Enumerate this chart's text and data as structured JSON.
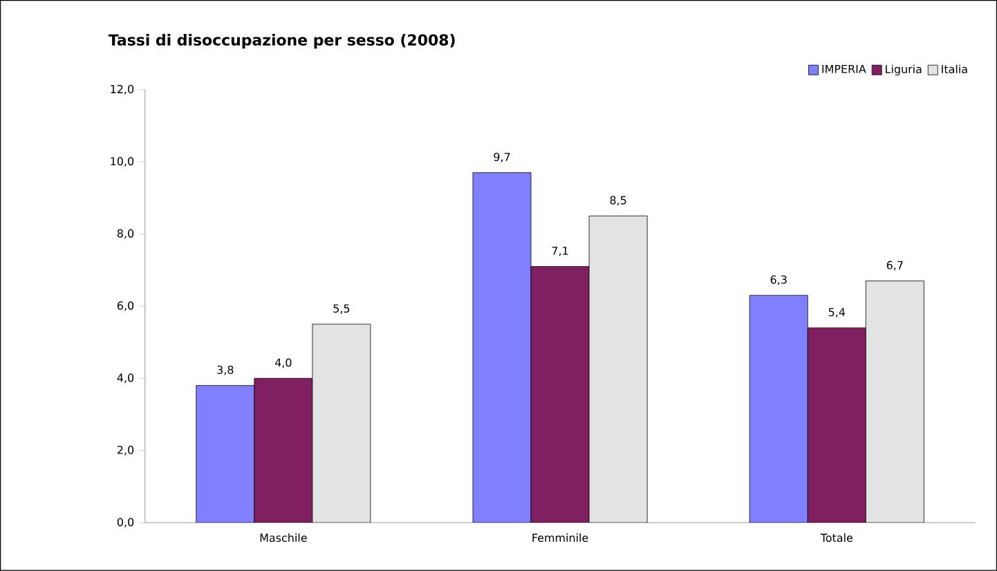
{
  "chart_data": {
    "type": "bar",
    "title": "Tassi di disoccupazione per sesso (2008)",
    "categories": [
      "Maschile",
      "Femminile",
      "Totale"
    ],
    "series": [
      {
        "name": "IMPERIA",
        "color": "#8080ff",
        "values": [
          3.8,
          9.7,
          6.3
        ],
        "value_labels": [
          "3,8",
          "9,7",
          "6,3"
        ]
      },
      {
        "name": "Liguria",
        "color": "#802060",
        "values": [
          4.0,
          7.1,
          5.4
        ],
        "value_labels": [
          "4,0",
          "7,1",
          "5,4"
        ]
      },
      {
        "name": "Italia",
        "color": "#e3e3e3",
        "values": [
          5.5,
          8.5,
          6.7
        ],
        "value_labels": [
          "5,5",
          "8,5",
          "6,7"
        ]
      }
    ],
    "ylim": [
      0,
      12
    ],
    "yticks": [
      {
        "value": 0,
        "label": "0,0"
      },
      {
        "value": 2,
        "label": "2,0"
      },
      {
        "value": 4,
        "label": "4,0"
      },
      {
        "value": 6,
        "label": "6,0"
      },
      {
        "value": 8,
        "label": "8,0"
      },
      {
        "value": 10,
        "label": "10,0"
      },
      {
        "value": 12,
        "label": "12,0"
      }
    ],
    "grid": false,
    "legend": "top right"
  }
}
